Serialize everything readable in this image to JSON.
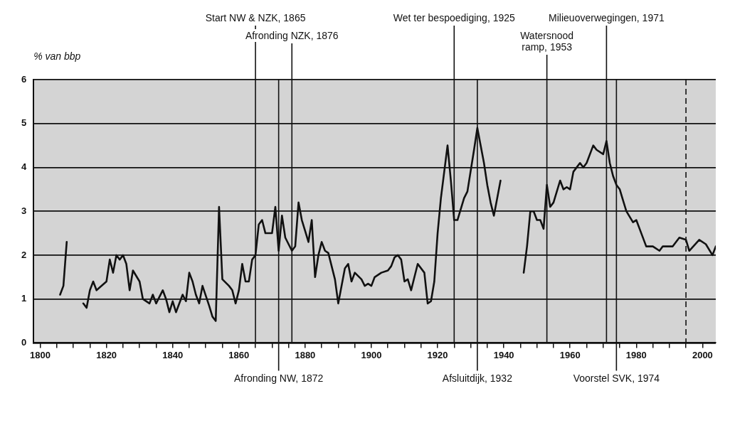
{
  "chart_data": {
    "type": "line",
    "ylabel": "% van bbp",
    "xlim": [
      1798,
      2004
    ],
    "ylim": [
      0,
      6
    ],
    "xticks": [
      1800,
      {
        "value": 1805,
        "label": null
      },
      {
        "value": 1810,
        "label": null
      },
      {
        "value": 1815,
        "label": null
      },
      1820,
      {
        "value": 1825,
        "label": null
      },
      {
        "value": 1830,
        "label": null
      },
      {
        "value": 1835,
        "label": null
      },
      1840,
      {
        "value": 1845,
        "label": null
      },
      {
        "value": 1850,
        "label": null
      },
      {
        "value": 1855,
        "label": null
      },
      1860,
      {
        "value": 1865,
        "label": null
      },
      {
        "value": 1870,
        "label": null
      },
      {
        "value": 1875,
        "label": null
      },
      1880,
      {
        "value": 1885,
        "label": null
      },
      {
        "value": 1890,
        "label": null
      },
      {
        "value": 1895,
        "label": null
      },
      1900,
      {
        "value": 1905,
        "label": null
      },
      {
        "value": 1910,
        "label": null
      },
      {
        "value": 1915,
        "label": null
      },
      1920,
      {
        "value": 1925,
        "label": null
      },
      {
        "value": 1930,
        "label": null
      },
      {
        "value": 1935,
        "label": null
      },
      1940,
      {
        "value": 1945,
        "label": null
      },
      {
        "value": 1950,
        "label": null
      },
      {
        "value": 1955,
        "label": null
      },
      1960,
      {
        "value": 1965,
        "label": null
      },
      {
        "value": 1970,
        "label": null
      },
      {
        "value": 1975,
        "label": null
      },
      1980,
      {
        "value": 1985,
        "label": null
      },
      {
        "value": 1990,
        "label": null
      },
      {
        "value": 1995,
        "label": null
      },
      2000
    ],
    "yticks": [
      0,
      1,
      2,
      3,
      4,
      5,
      6
    ],
    "grid": "y",
    "legend": false,
    "marker": "none",
    "line_style": "solid",
    "series": [
      {
        "color": "#111111",
        "x": [
          1806,
          1807,
          1808,
          1810,
          1813,
          1814,
          1815,
          1816,
          1817,
          1820,
          1821,
          1822,
          1823,
          1824,
          1825,
          1826,
          1827,
          1828,
          1830,
          1831,
          1833,
          1834,
          1835,
          1837,
          1838,
          1839,
          1840,
          1841,
          1843,
          1844,
          1845,
          1846,
          1847,
          1848,
          1849,
          1851,
          1852,
          1853,
          1854,
          1855,
          1857,
          1858,
          1859,
          1860,
          1861,
          1862,
          1863,
          1864,
          1865,
          1866,
          1867,
          1868,
          1870,
          1871,
          1872,
          1873,
          1874,
          1876,
          1877,
          1878,
          1879,
          1880,
          1881,
          1882,
          1883,
          1884,
          1885,
          1886,
          1887,
          1889,
          1890,
          1892,
          1893,
          1894,
          1895,
          1897,
          1898,
          1899,
          1900,
          1901,
          1903,
          1905,
          1906,
          1907,
          1908,
          1909,
          1910,
          1911,
          1912,
          1913,
          1914,
          1916,
          1917,
          1918,
          1919,
          1920,
          1921,
          1923,
          1924,
          1925,
          1926,
          1928,
          1929,
          1931,
          1932,
          1934,
          1935,
          1936,
          1937,
          1938,
          1939,
          1942,
          1946,
          1947,
          1948,
          1949,
          1950,
          1951,
          1952,
          1953,
          1954,
          1955,
          1957,
          1958,
          1959,
          1960,
          1961,
          1963,
          1964,
          1965,
          1967,
          1968,
          1970,
          1971,
          1972,
          1973,
          1974,
          1975,
          1976,
          1977,
          1979,
          1980,
          1981,
          1983,
          1985,
          1987,
          1988,
          1991,
          1993,
          1995,
          1996,
          1999,
          2001,
          2003,
          2004
        ],
        "values": [
          1.1,
          1.3,
          2.3,
          null,
          0.9,
          0.8,
          1.2,
          1.4,
          1.2,
          1.4,
          1.9,
          1.6,
          2.0,
          1.9,
          2.0,
          1.8,
          1.2,
          1.65,
          1.4,
          1.0,
          0.9,
          1.1,
          0.9,
          1.2,
          1.0,
          0.7,
          0.95,
          0.7,
          1.1,
          0.95,
          1.6,
          1.4,
          1.1,
          0.9,
          1.3,
          0.85,
          0.6,
          0.5,
          3.1,
          1.45,
          1.3,
          1.2,
          0.9,
          1.2,
          1.8,
          1.4,
          1.4,
          1.9,
          2.0,
          2.7,
          2.8,
          2.5,
          2.5,
          3.1,
          2.1,
          2.9,
          2.4,
          2.1,
          2.2,
          3.2,
          2.8,
          2.55,
          2.3,
          2.8,
          1.5,
          2.0,
          2.3,
          2.1,
          2.05,
          1.45,
          0.9,
          1.7,
          1.8,
          1.4,
          1.6,
          1.45,
          1.3,
          1.35,
          1.3,
          1.5,
          1.6,
          1.65,
          1.75,
          1.95,
          2.0,
          1.9,
          1.4,
          1.45,
          1.2,
          1.5,
          1.8,
          1.6,
          0.9,
          0.95,
          1.4,
          2.5,
          3.3,
          4.5,
          3.7,
          2.8,
          2.8,
          3.3,
          3.45,
          4.4,
          4.9,
          4.1,
          3.6,
          3.2,
          2.9,
          3.3,
          3.7,
          null,
          1.6,
          2.2,
          3.0,
          3.0,
          2.8,
          2.8,
          2.6,
          3.6,
          3.1,
          3.2,
          3.7,
          3.5,
          3.55,
          3.5,
          3.9,
          4.1,
          4.0,
          4.1,
          4.5,
          4.4,
          4.3,
          4.6,
          4.1,
          3.8,
          3.6,
          3.5,
          3.25,
          3.0,
          2.75,
          2.8,
          2.6,
          2.2,
          2.2,
          2.1,
          2.2,
          2.2,
          2.4,
          2.35,
          2.1,
          2.35,
          2.25,
          2.0,
          2.2
        ]
      }
    ],
    "ref_lines": [
      {
        "axis": "x",
        "value": 1865,
        "label": "Start NW & NZK, 1865"
      },
      {
        "axis": "x",
        "value": 1872,
        "label": "Afronding NW, 1872"
      },
      {
        "axis": "x",
        "value": 1876,
        "label": "Afronding NZK, 1876"
      },
      {
        "axis": "x",
        "value": 1925,
        "label": "Wet ter bespoediging, 1925"
      },
      {
        "axis": "x",
        "value": 1932,
        "label": "Afsluitdijk, 1932"
      },
      {
        "axis": "x",
        "value": 1953,
        "label": "Watersnood\nramp, 1953"
      },
      {
        "axis": "x",
        "value": 1971,
        "label": "Milieuoverwegingen, 1971"
      },
      {
        "axis": "x",
        "value": 1974,
        "label": "Voorstel SVK, 1974"
      },
      {
        "axis": "x",
        "value": 1995,
        "line_style": "dashed"
      }
    ]
  }
}
